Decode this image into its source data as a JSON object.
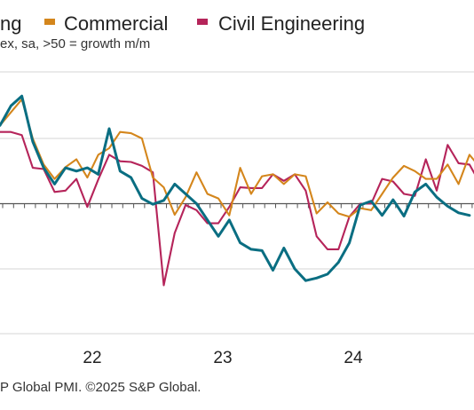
{
  "legend": [
    {
      "label": "ng",
      "color": "#0a6e82"
    },
    {
      "label": "Commercial",
      "color": "#d4861c"
    },
    {
      "label": "Civil Engineering",
      "color": "#b5245a"
    }
  ],
  "subtitle": "ex, sa, >50 = growth m/m",
  "source": "P Global PMI. ©2025 S&P Global.",
  "chart_data": {
    "type": "line",
    "x_ticks": [
      "22",
      "23",
      "24"
    ],
    "ylim": [
      30,
      70
    ],
    "y_gridlines": [
      40,
      50,
      60
    ],
    "reference_line": 50,
    "grid": "horizontal",
    "series": [
      {
        "name": "",
        "color": "#0a6e82",
        "values": [
          62,
          65,
          66.5,
          59.5,
          55.5,
          53,
          55.5,
          55,
          55.5,
          54.5,
          61.5,
          55,
          54,
          50.8,
          49.9,
          50.5,
          53,
          51.5,
          50,
          47.5,
          45,
          47.5,
          44,
          43,
          42.8,
          39.8,
          43.2,
          40,
          38.2,
          38.6,
          39.2,
          41,
          44,
          49.8,
          50.4,
          48.2,
          50.6,
          48.1,
          51.8,
          53,
          51,
          49.6,
          48.6,
          48.2
        ]
      },
      {
        "name": "Commercial",
        "color": "#d4861c",
        "values": [
          62,
          64,
          66,
          60,
          56,
          53.8,
          55.6,
          56.8,
          54,
          57.5,
          58.5,
          61,
          60.8,
          60,
          54,
          52.5,
          48.3,
          51,
          54.8,
          51.5,
          50.8,
          48.2,
          55.5,
          51.5,
          54.2,
          54.5,
          53,
          54.5,
          54.2,
          48.5,
          50.2,
          48.5,
          48,
          49.3,
          49,
          51.5,
          54,
          55.8,
          55,
          53.8,
          53.8,
          56,
          53,
          57.5,
          55.5
        ]
      },
      {
        "name": "Civil Engineering",
        "color": "#b5245a",
        "values": [
          61,
          61,
          60.5,
          55.5,
          55.3,
          51.8,
          52,
          53.8,
          49.5,
          53.7,
          57.5,
          56.5,
          56.4,
          55.8,
          54.8,
          37.5,
          45.5,
          49.8,
          49,
          47,
          47,
          49.5,
          52.5,
          52.4,
          52.4,
          54.5,
          53.5,
          54.5,
          52,
          45,
          43,
          43,
          48,
          50,
          50,
          53.8,
          53.4,
          51.5,
          51.2,
          56.8,
          52,
          59,
          56.2,
          56,
          53
        ]
      }
    ]
  }
}
